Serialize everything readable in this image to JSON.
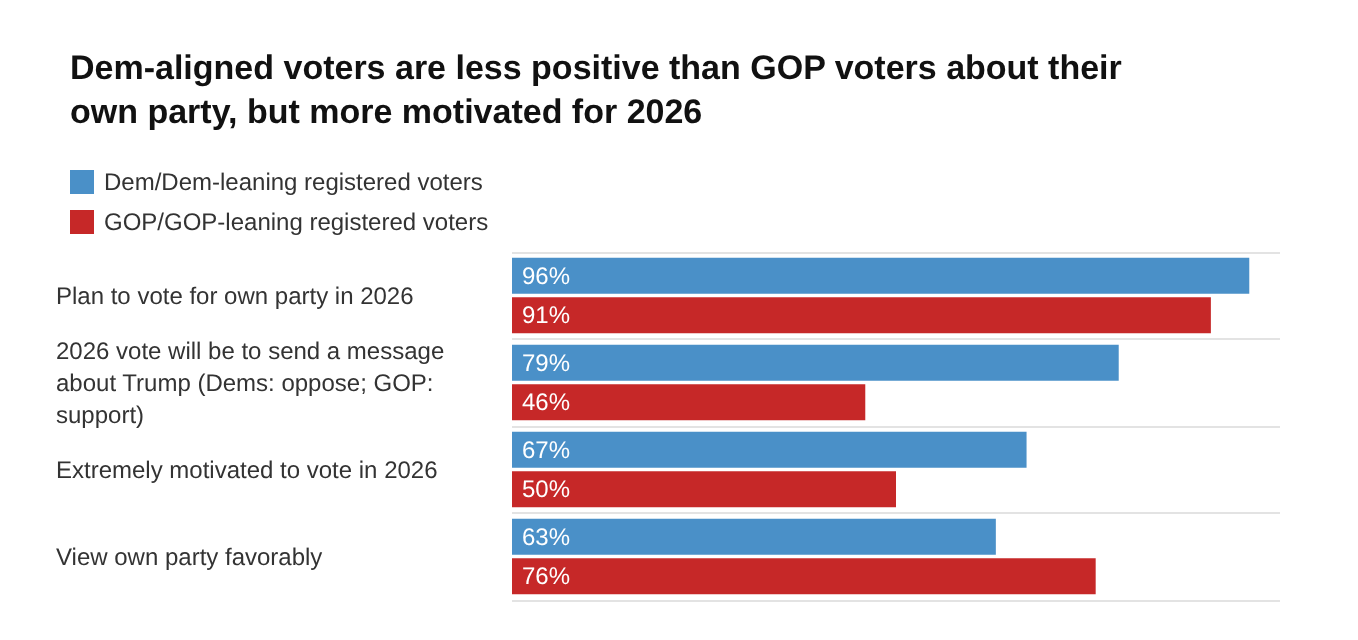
{
  "chart_data": {
    "type": "bar",
    "orientation": "horizontal",
    "title": "Dem-aligned voters are less positive than GOP voters about their own party, but more motivated for 2026",
    "categories": [
      "Plan to vote for own party in 2026",
      "2026 vote will be to send a message about Trump (Dems: oppose; GOP: support)",
      "Extremely motivated to vote in 2026",
      "View own party favorably"
    ],
    "series": [
      {
        "name": "Dem/Dem-leaning registered voters",
        "color": "#4a90c8",
        "values": [
          96,
          79,
          67,
          63
        ],
        "value_labels": [
          "96%",
          "79%",
          "67%",
          "63%"
        ]
      },
      {
        "name": "GOP/GOP-leaning registered voters",
        "color": "#c62828",
        "values": [
          91,
          46,
          50,
          76
        ],
        "value_labels": [
          "91%",
          "46%",
          "50%",
          "76%"
        ]
      }
    ],
    "legend": "top left",
    "grid": "y"
  }
}
